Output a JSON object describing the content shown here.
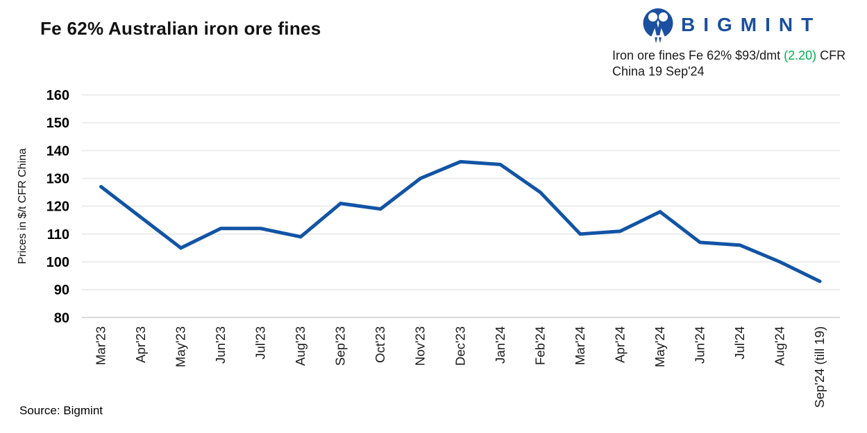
{
  "title": "Fe 62% Australian iron ore fines",
  "logo": {
    "brand": "BIGMINT",
    "brand_color": "#1B4F9F"
  },
  "subtitle": {
    "line1_prefix": "Iron ore fines Fe 62% $93/dmt ",
    "line1_change": "(2.20)",
    "line1_suffix": " CFR",
    "line2": "China 19 Sep'24",
    "change_color": "#00B050"
  },
  "source": "Source: Bigmint",
  "chart_data": {
    "type": "line",
    "title": "Fe 62% Australian iron ore fines",
    "categories": [
      "Mar'23",
      "Apr'23",
      "May'23",
      "Jun'23",
      "Jul'23",
      "Aug'23",
      "Sep'23",
      "Oct'23",
      "Nov'23",
      "Dec'23",
      "Jan'24",
      "Feb'24",
      "Mar'24",
      "Apr'24",
      "May'24",
      "Jun'24",
      "Jul'24",
      "Aug'24",
      "Sep'24 (till 19)"
    ],
    "values": [
      127,
      116,
      105,
      112,
      112,
      109,
      121,
      119,
      130,
      136,
      135,
      125,
      110,
      111,
      118,
      107,
      106,
      100,
      93
    ],
    "xlabel": "",
    "ylabel": "Prices in $/t CFR China",
    "ylim": [
      80,
      160
    ],
    "ytick_step": 10,
    "grid": "horizontal",
    "legend": "none",
    "line_color": "#1254A5",
    "gridline_color": "#ECECEC",
    "baseline_color": "#D8D8D8"
  }
}
